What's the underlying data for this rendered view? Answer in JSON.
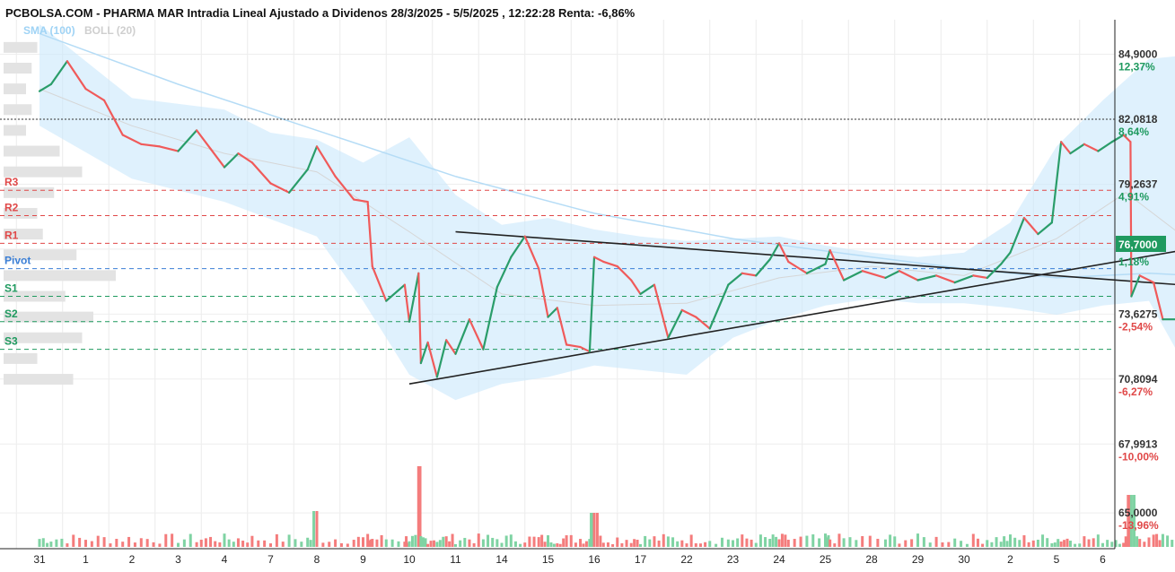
{
  "chart_data": {
    "type": "line",
    "title": "PCBOLSA.COM - PHARMA MAR Intradia Lineal Ajustado a Dividenos 28/3/2025 - 5/5/2025 , 12:22:28 Renta: -6,86%",
    "legend": [
      {
        "label": "SMA (100)",
        "color": "#9fd3f5"
      },
      {
        "label": "BOLL (20)",
        "color": "#cfcfcf"
      }
    ],
    "x_ticks": [
      "31",
      "1",
      "2",
      "3",
      "4",
      "7",
      "8",
      "9",
      "10",
      "11",
      "14",
      "15",
      "16",
      "17",
      "22",
      "23",
      "24",
      "25",
      "28",
      "29",
      "30",
      "2",
      "5",
      "6"
    ],
    "y_ticks": [
      {
        "value": "84,9000",
        "pct": "12,37%",
        "pct_color": "#1f9a5f"
      },
      {
        "value": "82,0818",
        "pct": "8,64%",
        "pct_color": "#1f9a5f"
      },
      {
        "value": "79,2637",
        "pct": "4,91%",
        "pct_color": "#1f9a5f"
      },
      {
        "value": "76,4456",
        "pct": "1,18%",
        "pct_color": "#1f9a5f"
      },
      {
        "value": "73,6275",
        "pct": "-2,54%",
        "pct_color": "#e04848"
      },
      {
        "value": "70,8094",
        "pct": "-6,27%",
        "pct_color": "#e04848"
      },
      {
        "value": "67,9913",
        "pct": "-10,00%",
        "pct_color": "#e04848"
      },
      {
        "value": "65,0000",
        "pct": "-13,96%",
        "pct_color": "#e04848"
      }
    ],
    "last_price_label": "76,7000",
    "y_range": [
      63.45,
      86.4
    ],
    "reference_price_dotted": 82.08,
    "levels": [
      {
        "name": "R3",
        "value": 79.0,
        "color": "#e04848"
      },
      {
        "name": "R2",
        "value": 77.9,
        "color": "#e04848"
      },
      {
        "name": "R1",
        "value": 76.7,
        "color": "#e04848"
      },
      {
        "name": "Pivot",
        "value": 75.6,
        "color": "#3b7fd6"
      },
      {
        "name": "S1",
        "value": 74.4,
        "color": "#1f9a5f"
      },
      {
        "name": "S2",
        "value": 73.3,
        "color": "#1f9a5f"
      },
      {
        "name": "S3",
        "value": 72.1,
        "color": "#1f9a5f"
      }
    ],
    "price": [
      {
        "x": 0,
        "y": 83.3
      },
      {
        "x": 0.25,
        "y": 83.6
      },
      {
        "x": 0.6,
        "y": 84.6
      },
      {
        "x": 1.0,
        "y": 83.4
      },
      {
        "x": 1.4,
        "y": 82.9
      },
      {
        "x": 1.8,
        "y": 81.4
      },
      {
        "x": 2.2,
        "y": 81.0
      },
      {
        "x": 2.6,
        "y": 80.9
      },
      {
        "x": 3.0,
        "y": 80.7
      },
      {
        "x": 3.4,
        "y": 81.6
      },
      {
        "x": 3.7,
        "y": 80.8
      },
      {
        "x": 4.0,
        "y": 80.0
      },
      {
        "x": 4.3,
        "y": 80.6
      },
      {
        "x": 4.6,
        "y": 80.2
      },
      {
        "x": 5.0,
        "y": 79.3
      },
      {
        "x": 5.4,
        "y": 78.9
      },
      {
        "x": 5.8,
        "y": 79.9
      },
      {
        "x": 6.0,
        "y": 80.9
      },
      {
        "x": 6.4,
        "y": 79.6
      },
      {
        "x": 6.8,
        "y": 78.6
      },
      {
        "x": 7.1,
        "y": 78.5
      },
      {
        "x": 7.2,
        "y": 75.7
      },
      {
        "x": 7.5,
        "y": 74.2
      },
      {
        "x": 7.9,
        "y": 74.9
      },
      {
        "x": 8.0,
        "y": 73.3
      },
      {
        "x": 8.2,
        "y": 75.4
      },
      {
        "x": 8.25,
        "y": 71.5
      },
      {
        "x": 8.4,
        "y": 72.4
      },
      {
        "x": 8.6,
        "y": 70.9
      },
      {
        "x": 8.8,
        "y": 72.5
      },
      {
        "x": 9.0,
        "y": 71.9
      },
      {
        "x": 9.3,
        "y": 73.4
      },
      {
        "x": 9.6,
        "y": 72.1
      },
      {
        "x": 9.9,
        "y": 74.8
      },
      {
        "x": 10.2,
        "y": 76.1
      },
      {
        "x": 10.5,
        "y": 77.0
      },
      {
        "x": 10.8,
        "y": 75.6
      },
      {
        "x": 11.0,
        "y": 73.5
      },
      {
        "x": 11.2,
        "y": 73.9
      },
      {
        "x": 11.4,
        "y": 72.3
      },
      {
        "x": 11.7,
        "y": 72.2
      },
      {
        "x": 11.9,
        "y": 72.0
      },
      {
        "x": 12.0,
        "y": 76.1
      },
      {
        "x": 12.2,
        "y": 75.9
      },
      {
        "x": 12.5,
        "y": 75.7
      },
      {
        "x": 12.8,
        "y": 75.1
      },
      {
        "x": 13.0,
        "y": 74.5
      },
      {
        "x": 13.3,
        "y": 74.9
      },
      {
        "x": 13.6,
        "y": 72.6
      },
      {
        "x": 13.9,
        "y": 73.8
      },
      {
        "x": 14.2,
        "y": 73.5
      },
      {
        "x": 14.5,
        "y": 73.0
      },
      {
        "x": 14.9,
        "y": 74.9
      },
      {
        "x": 15.2,
        "y": 75.4
      },
      {
        "x": 15.5,
        "y": 75.3
      },
      {
        "x": 15.8,
        "y": 76.0
      },
      {
        "x": 16.0,
        "y": 76.7
      },
      {
        "x": 16.2,
        "y": 75.9
      },
      {
        "x": 16.6,
        "y": 75.4
      },
      {
        "x": 17.0,
        "y": 75.8
      },
      {
        "x": 17.1,
        "y": 76.4
      },
      {
        "x": 17.4,
        "y": 75.1
      },
      {
        "x": 17.8,
        "y": 75.5
      },
      {
        "x": 18.3,
        "y": 75.2
      },
      {
        "x": 18.6,
        "y": 75.5
      },
      {
        "x": 19.0,
        "y": 75.1
      },
      {
        "x": 19.4,
        "y": 75.3
      },
      {
        "x": 19.8,
        "y": 75.0
      },
      {
        "x": 20.2,
        "y": 75.3
      },
      {
        "x": 20.5,
        "y": 75.2
      },
      {
        "x": 20.8,
        "y": 75.8
      },
      {
        "x": 21.0,
        "y": 76.3
      },
      {
        "x": 21.3,
        "y": 77.8
      },
      {
        "x": 21.6,
        "y": 77.1
      },
      {
        "x": 21.9,
        "y": 77.6
      },
      {
        "x": 22.1,
        "y": 81.1
      },
      {
        "x": 22.3,
        "y": 80.6
      },
      {
        "x": 22.6,
        "y": 81.0
      },
      {
        "x": 22.9,
        "y": 80.7
      },
      {
        "x": 23.2,
        "y": 81.1
      },
      {
        "x": 23.45,
        "y": 81.4
      },
      {
        "x": 23.6,
        "y": 81.1
      },
      {
        "x": 23.62,
        "y": 74.4
      },
      {
        "x": 23.8,
        "y": 75.3
      },
      {
        "x": 24.1,
        "y": 75.0
      },
      {
        "x": 24.3,
        "y": 73.4
      },
      {
        "x": 24.6,
        "y": 73.4
      },
      {
        "x": 24.8,
        "y": 71.3
      },
      {
        "x": 25.0,
        "y": 72.9
      },
      {
        "x": 25.2,
        "y": 72.4
      },
      {
        "x": 25.4,
        "y": 72.0
      },
      {
        "x": 25.7,
        "y": 71.6
      },
      {
        "x": 26.0,
        "y": 71.2
      },
      {
        "x": 26.3,
        "y": 72.0
      },
      {
        "x": 26.6,
        "y": 71.9
      },
      {
        "x": 26.9,
        "y": 72.3
      },
      {
        "x": 27.2,
        "y": 73.9
      },
      {
        "x": 27.5,
        "y": 73.8
      },
      {
        "x": 27.8,
        "y": 73.1
      },
      {
        "x": 28.0,
        "y": 73.6
      },
      {
        "x": 28.3,
        "y": 75.8
      },
      {
        "x": 28.6,
        "y": 75.5
      },
      {
        "x": 28.9,
        "y": 75.0
      },
      {
        "x": 29.2,
        "y": 75.3
      },
      {
        "x": 29.5,
        "y": 75.7
      },
      {
        "x": 29.7,
        "y": 76.1
      },
      {
        "x": 29.85,
        "y": 77.3
      },
      {
        "x": 30.1,
        "y": 77.0
      },
      {
        "x": 30.2,
        "y": 76.7
      }
    ],
    "sma100": [
      {
        "x": 0,
        "y": 85.8
      },
      {
        "x": 3,
        "y": 83.6
      },
      {
        "x": 6,
        "y": 81.6
      },
      {
        "x": 9,
        "y": 79.6
      },
      {
        "x": 12,
        "y": 78.0
      },
      {
        "x": 15,
        "y": 76.9
      },
      {
        "x": 18,
        "y": 76.1
      },
      {
        "x": 20,
        "y": 75.6
      },
      {
        "x": 22,
        "y": 75.2
      },
      {
        "x": 24,
        "y": 75.4
      },
      {
        "x": 26,
        "y": 75.2
      },
      {
        "x": 28,
        "y": 74.9
      },
      {
        "x": 30.2,
        "y": 74.5
      }
    ],
    "boll_mid": [
      {
        "x": 0,
        "y": 83.4
      },
      {
        "x": 2,
        "y": 81.8
      },
      {
        "x": 4,
        "y": 80.6
      },
      {
        "x": 6,
        "y": 79.8
      },
      {
        "x": 8,
        "y": 77.2
      },
      {
        "x": 10,
        "y": 74.5
      },
      {
        "x": 12,
        "y": 74.0
      },
      {
        "x": 14,
        "y": 74.1
      },
      {
        "x": 16,
        "y": 75.2
      },
      {
        "x": 18,
        "y": 75.7
      },
      {
        "x": 20,
        "y": 75.3
      },
      {
        "x": 22,
        "y": 76.9
      },
      {
        "x": 23.5,
        "y": 78.9
      },
      {
        "x": 25,
        "y": 76.6
      },
      {
        "x": 26.5,
        "y": 73.4
      },
      {
        "x": 28,
        "y": 72.7
      },
      {
        "x": 30.2,
        "y": 74.5
      }
    ],
    "boll_upper": [
      {
        "x": 0,
        "y": 86.2
      },
      {
        "x": 2,
        "y": 83.0
      },
      {
        "x": 4,
        "y": 82.5
      },
      {
        "x": 5,
        "y": 81.5
      },
      {
        "x": 6,
        "y": 81.2
      },
      {
        "x": 7,
        "y": 80.2
      },
      {
        "x": 8,
        "y": 81.3
      },
      {
        "x": 9,
        "y": 78.8
      },
      {
        "x": 10,
        "y": 77.5
      },
      {
        "x": 11,
        "y": 77.8
      },
      {
        "x": 12,
        "y": 77.3
      },
      {
        "x": 13,
        "y": 77.0
      },
      {
        "x": 14,
        "y": 76.8
      },
      {
        "x": 15,
        "y": 76.9
      },
      {
        "x": 16,
        "y": 77.0
      },
      {
        "x": 17,
        "y": 76.6
      },
      {
        "x": 18,
        "y": 76.3
      },
      {
        "x": 19,
        "y": 76.1
      },
      {
        "x": 20,
        "y": 76.3
      },
      {
        "x": 21,
        "y": 77.6
      },
      {
        "x": 22,
        "y": 80.9
      },
      {
        "x": 23,
        "y": 82.9
      },
      {
        "x": 24,
        "y": 84.7
      },
      {
        "x": 25,
        "y": 84.9
      },
      {
        "x": 26,
        "y": 80.0
      },
      {
        "x": 27,
        "y": 76.6
      },
      {
        "x": 28,
        "y": 75.7
      },
      {
        "x": 29,
        "y": 76.1
      },
      {
        "x": 29.6,
        "y": 77.6
      },
      {
        "x": 30.2,
        "y": 77.0
      }
    ],
    "boll_lower": [
      {
        "x": 0,
        "y": 81.8
      },
      {
        "x": 2,
        "y": 79.5
      },
      {
        "x": 4,
        "y": 78.5
      },
      {
        "x": 6,
        "y": 77.0
      },
      {
        "x": 7,
        "y": 74.2
      },
      {
        "x": 8,
        "y": 71.0
      },
      {
        "x": 9,
        "y": 69.9
      },
      {
        "x": 10,
        "y": 70.6
      },
      {
        "x": 11,
        "y": 70.9
      },
      {
        "x": 12,
        "y": 71.4
      },
      {
        "x": 13,
        "y": 71.2
      },
      {
        "x": 14,
        "y": 71.0
      },
      {
        "x": 15,
        "y": 72.6
      },
      {
        "x": 16,
        "y": 73.4
      },
      {
        "x": 17,
        "y": 74.0
      },
      {
        "x": 18,
        "y": 74.3
      },
      {
        "x": 19,
        "y": 74.1
      },
      {
        "x": 20,
        "y": 74.1
      },
      {
        "x": 21,
        "y": 73.9
      },
      {
        "x": 22,
        "y": 73.6
      },
      {
        "x": 23,
        "y": 74.0
      },
      {
        "x": 24,
        "y": 74.2
      },
      {
        "x": 25,
        "y": 70.6
      },
      {
        "x": 26,
        "y": 68.5
      },
      {
        "x": 27,
        "y": 69.2
      },
      {
        "x": 28,
        "y": 70.7
      },
      {
        "x": 29,
        "y": 70.8
      },
      {
        "x": 30.2,
        "y": 72.1
      }
    ],
    "trendlines": [
      {
        "x1": 8.0,
        "y1": 70.6,
        "x2": 30.5,
        "y2": 78.4
      },
      {
        "x1": 9.0,
        "y1": 77.2,
        "x2": 30.8,
        "y2": 74.0
      }
    ],
    "volume_profile": [
      {
        "y": 85.2,
        "w": 0.3
      },
      {
        "y": 84.3,
        "w": 0.25
      },
      {
        "y": 83.4,
        "w": 0.2
      },
      {
        "y": 82.5,
        "w": 0.25
      },
      {
        "y": 81.6,
        "w": 0.2
      },
      {
        "y": 80.7,
        "w": 0.5
      },
      {
        "y": 79.8,
        "w": 0.7
      },
      {
        "y": 78.9,
        "w": 0.45
      },
      {
        "y": 78.0,
        "w": 0.3
      },
      {
        "y": 77.1,
        "w": 0.35
      },
      {
        "y": 76.2,
        "w": 0.65
      },
      {
        "y": 75.3,
        "w": 1.0
      },
      {
        "y": 74.4,
        "w": 0.55
      },
      {
        "y": 73.5,
        "w": 0.8
      },
      {
        "y": 72.6,
        "w": 0.7
      },
      {
        "y": 71.7,
        "w": 0.3
      },
      {
        "y": 70.8,
        "w": 0.62
      }
    ],
    "volume_max": 1.0
  }
}
